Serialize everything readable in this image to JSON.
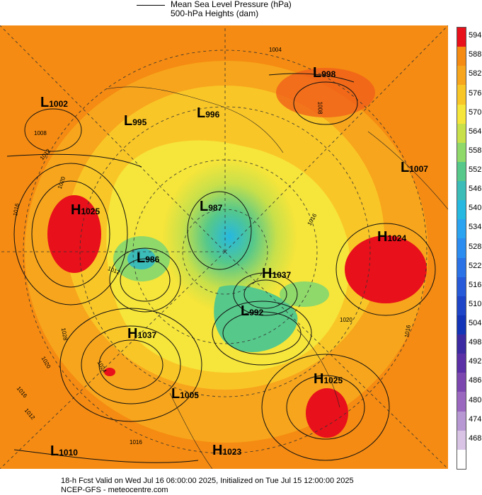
{
  "legend": {
    "mslp_label": "Mean Sea Level Pressure (hPa)",
    "height_label": "500-hPa Heights (dam)"
  },
  "colorbar": {
    "levels": [
      "594",
      "588",
      "582",
      "576",
      "570",
      "564",
      "558",
      "552",
      "546",
      "540",
      "534",
      "528",
      "522",
      "516",
      "510",
      "504",
      "498",
      "492",
      "486",
      "480",
      "474",
      "468"
    ],
    "colors": [
      "#e8101a",
      "#f58b12",
      "#f7a51c",
      "#f9c627",
      "#f6e53a",
      "#c8e04a",
      "#8fd86a",
      "#56c88a",
      "#3bbcb8",
      "#26b8e0",
      "#2ba3f0",
      "#2c8cef",
      "#2a72e6",
      "#265ad9",
      "#1e45c8",
      "#1434b8",
      "#3c2aa3",
      "#5b2fa6",
      "#7c48b0",
      "#9b68c0",
      "#b898d3",
      "#d9c4e6",
      "#ffffff"
    ]
  },
  "pressure_centers": [
    {
      "type": "L",
      "value": "1002"
    },
    {
      "type": "L",
      "value": "995"
    },
    {
      "type": "L",
      "value": "996"
    },
    {
      "type": "L",
      "value": "998"
    },
    {
      "type": "L",
      "value": "1007"
    },
    {
      "type": "H",
      "value": "1025"
    },
    {
      "type": "L",
      "value": "987"
    },
    {
      "type": "L",
      "value": "986"
    },
    {
      "type": "H",
      "value": "1024"
    },
    {
      "type": "H",
      "value": "1037"
    },
    {
      "type": "L",
      "value": "992"
    },
    {
      "type": "H",
      "value": "1037"
    },
    {
      "type": "H",
      "value": "1025"
    },
    {
      "type": "L",
      "value": "1005"
    },
    {
      "type": "L",
      "value": "1010"
    },
    {
      "type": "H",
      "value": "1023"
    }
  ],
  "contour_labels": [
    "1004",
    "1008",
    "1008",
    "1012",
    "1016",
    "1020",
    "1012",
    "1016",
    "1028",
    "1024",
    "1020",
    "1016",
    "1012",
    "1016",
    "1020",
    "1016"
  ],
  "footer": {
    "line1": "18-h Fcst Valid on Wed Jul 16 06:00:00 2025, Initialized on Tue Jul 15 12:00:00 2025",
    "line2": "NCEP-GFS  - meteocentre.com"
  }
}
